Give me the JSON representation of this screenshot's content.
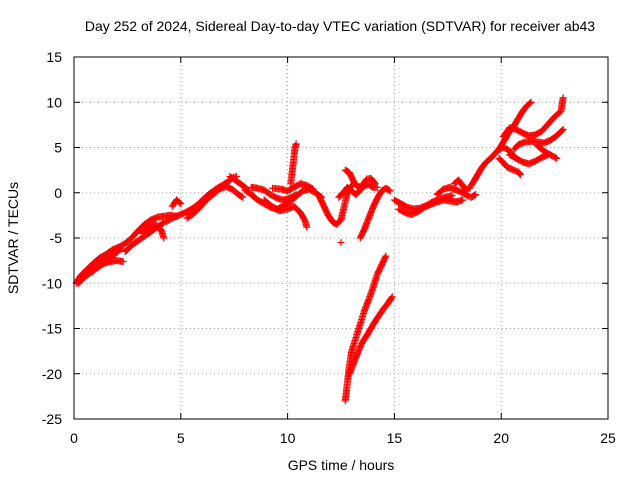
{
  "chart_data": {
    "type": "scatter",
    "title": "Day 252 of 2024, Sidereal Day-to-day VTEC variation (SDTVAR) for receiver ab43",
    "xlabel": "GPS time / hours",
    "ylabel": "SDTVAR / TECUs",
    "xlim": [
      0,
      25
    ],
    "ylim": [
      -25,
      15
    ],
    "xticks": [
      "0",
      "5",
      "10",
      "15",
      "20",
      "25"
    ],
    "yticks": [
      "-25",
      "-20",
      "-15",
      "-10",
      "-5",
      "0",
      "5",
      "10",
      "15"
    ],
    "grid": true,
    "marker": "plus",
    "color": "#ff0000",
    "segments": [
      [
        [
          0.1,
          -10
        ],
        [
          0.3,
          -9.2
        ],
        [
          0.6,
          -8.5
        ],
        [
          0.9,
          -7.8
        ],
        [
          1.2,
          -7.2
        ],
        [
          1.5,
          -6.8
        ],
        [
          1.8,
          -6.3
        ],
        [
          2.1,
          -6.0
        ],
        [
          2.4,
          -5.6
        ],
        [
          2.7,
          -5.0
        ],
        [
          3.0,
          -4.2
        ],
        [
          3.3,
          -3.5
        ],
        [
          3.6,
          -3.0
        ],
        [
          3.9,
          -2.7
        ],
        [
          4.2,
          -2.6
        ],
        [
          4.5,
          -2.5
        ],
        [
          4.8,
          -2.6
        ]
      ],
      [
        [
          0.2,
          -10
        ],
        [
          0.5,
          -9.3
        ],
        [
          0.8,
          -8.8
        ],
        [
          1.1,
          -8.3
        ],
        [
          1.4,
          -7.8
        ],
        [
          1.7,
          -7.6
        ],
        [
          2.0,
          -7.5
        ],
        [
          2.3,
          -7.6
        ]
      ],
      [
        [
          0.4,
          -9.5
        ],
        [
          0.7,
          -8.8
        ],
        [
          1.0,
          -7.8
        ],
        [
          1.3,
          -7.5
        ],
        [
          1.6,
          -7.2
        ],
        [
          1.9,
          -6.8
        ],
        [
          2.2,
          -6.2
        ]
      ],
      [
        [
          2.4,
          -6.5
        ],
        [
          2.7,
          -5.8
        ],
        [
          3.0,
          -5.3
        ],
        [
          3.3,
          -4.8
        ],
        [
          3.6,
          -4.3
        ],
        [
          3.9,
          -3.8
        ],
        [
          4.2,
          -3.3
        ]
      ],
      [
        [
          3.2,
          -4.5
        ],
        [
          3.5,
          -3.8
        ],
        [
          3.8,
          -3.5
        ],
        [
          4.1,
          -4.2
        ],
        [
          4.2,
          -5.0
        ]
      ],
      [
        [
          4.3,
          -3.2
        ],
        [
          4.6,
          -2.8
        ],
        [
          4.9,
          -2.5
        ],
        [
          5.2,
          -2.2
        ],
        [
          5.5,
          -1.8
        ],
        [
          5.8,
          -1.3
        ],
        [
          6.1,
          -0.6
        ],
        [
          6.4,
          0.0
        ],
        [
          6.7,
          0.5
        ],
        [
          7.0,
          0.9
        ],
        [
          7.2,
          1.2
        ],
        [
          7.4,
          1.6
        ],
        [
          7.6,
          1.8
        ]
      ],
      [
        [
          5.3,
          -2.8
        ],
        [
          5.6,
          -2.3
        ],
        [
          5.9,
          -1.6
        ],
        [
          6.2,
          -0.8
        ],
        [
          6.5,
          -0.2
        ],
        [
          6.8,
          0.4
        ],
        [
          7.1,
          0.7
        ],
        [
          7.4,
          0.4
        ],
        [
          7.7,
          -0.2
        ],
        [
          7.9,
          -0.5
        ]
      ],
      [
        [
          4.6,
          -1.5
        ],
        [
          4.8,
          -0.8
        ],
        [
          5.0,
          -1.2
        ]
      ],
      [
        [
          7.3,
          1.8
        ],
        [
          7.6,
          1.3
        ],
        [
          7.9,
          0.8
        ],
        [
          8.1,
          0.4
        ]
      ],
      [
        [
          8.0,
          0.3
        ],
        [
          8.3,
          -0.2
        ],
        [
          8.6,
          -0.8
        ],
        [
          8.9,
          -1.2
        ],
        [
          9.2,
          -1.6
        ],
        [
          9.5,
          -1.8
        ],
        [
          9.8,
          -1.5
        ],
        [
          10.1,
          -1.0
        ],
        [
          10.4,
          -0.4
        ],
        [
          10.7,
          0.2
        ],
        [
          11.0,
          0.4
        ],
        [
          11.3,
          0.0
        ],
        [
          11.6,
          -0.5
        ]
      ],
      [
        [
          8.3,
          0.6
        ],
        [
          8.6,
          0.5
        ],
        [
          8.9,
          0.3
        ],
        [
          9.2,
          -0.2
        ],
        [
          9.5,
          -0.6
        ],
        [
          9.8,
          -0.8
        ],
        [
          10.1,
          -0.6
        ],
        [
          10.4,
          -0.2
        ]
      ],
      [
        [
          8.9,
          -0.8
        ],
        [
          9.2,
          -1.4
        ],
        [
          9.6,
          -2.0
        ],
        [
          10.0,
          -1.8
        ],
        [
          10.3,
          -1.5
        ],
        [
          10.6,
          -2.2
        ],
        [
          10.8,
          -3.0
        ],
        [
          10.9,
          -3.8
        ]
      ],
      [
        [
          9.3,
          0.5
        ],
        [
          9.7,
          0.4
        ],
        [
          10.0,
          0.2
        ],
        [
          10.3,
          0.6
        ],
        [
          10.6,
          1.0
        ],
        [
          10.9,
          0.8
        ],
        [
          11.2,
          0.4
        ]
      ],
      [
        [
          10.15,
          1.0
        ],
        [
          10.2,
          2.0
        ],
        [
          10.25,
          3.0
        ],
        [
          10.3,
          4.0
        ],
        [
          10.35,
          5.0
        ],
        [
          10.4,
          5.4
        ]
      ],
      [
        [
          11.5,
          -0.5
        ],
        [
          11.7,
          -1.5
        ],
        [
          11.9,
          -2.5
        ],
        [
          12.1,
          -3.2
        ],
        [
          12.3,
          -3.5
        ],
        [
          12.5,
          -3.0
        ],
        [
          12.6,
          -2.0
        ],
        [
          12.7,
          -1.0
        ],
        [
          12.8,
          0.0
        ],
        [
          12.9,
          0.5
        ],
        [
          13.0,
          0.8
        ]
      ],
      [
        [
          12.4,
          -0.5
        ],
        [
          12.6,
          0.0
        ],
        [
          12.8,
          0.6
        ],
        [
          13.0,
          0.2
        ],
        [
          13.2,
          -0.2
        ],
        [
          13.4,
          0.3
        ],
        [
          13.6,
          0.8
        ],
        [
          13.8,
          0.9
        ],
        [
          14.0,
          0.6
        ],
        [
          14.2,
          0.6
        ]
      ],
      [
        [
          12.5,
          -5.5
        ]
      ],
      [
        [
          12.7,
          2.5
        ],
        [
          12.9,
          2.2
        ],
        [
          13.1,
          1.2
        ],
        [
          13.3,
          0.6
        ],
        [
          13.5,
          0.8
        ],
        [
          13.7,
          1.5
        ],
        [
          13.9,
          1.6
        ],
        [
          14.1,
          1.0
        ]
      ],
      [
        [
          13.4,
          -5.0
        ],
        [
          13.6,
          -4.0
        ],
        [
          13.8,
          -2.8
        ],
        [
          14.0,
          -1.6
        ],
        [
          14.2,
          -0.6
        ],
        [
          14.4,
          0.2
        ],
        [
          14.6,
          0.5
        ],
        [
          14.8,
          0.2
        ]
      ],
      [
        [
          12.7,
          -23.0
        ],
        [
          12.8,
          -21.0
        ],
        [
          12.9,
          -19.0
        ],
        [
          13.0,
          -17.5
        ],
        [
          13.2,
          -16.0
        ],
        [
          13.4,
          -14.5
        ],
        [
          13.6,
          -13.0
        ],
        [
          13.8,
          -11.8
        ],
        [
          14.0,
          -10.5
        ],
        [
          14.2,
          -9.0
        ],
        [
          14.4,
          -8.0
        ],
        [
          14.6,
          -7.0
        ]
      ],
      [
        [
          12.9,
          -20.0
        ],
        [
          13.1,
          -18.8
        ],
        [
          13.3,
          -17.6
        ],
        [
          13.5,
          -16.5
        ],
        [
          13.7,
          -15.8
        ],
        [
          13.9,
          -15.0
        ],
        [
          14.1,
          -14.2
        ],
        [
          14.3,
          -13.5
        ],
        [
          14.5,
          -12.8
        ],
        [
          14.7,
          -12.2
        ],
        [
          14.9,
          -11.5
        ]
      ],
      [
        [
          15.0,
          -0.8
        ],
        [
          15.3,
          -1.2
        ],
        [
          15.6,
          -1.6
        ],
        [
          15.9,
          -1.8
        ],
        [
          16.2,
          -1.7
        ],
        [
          16.5,
          -1.4
        ],
        [
          16.8,
          -1.0
        ],
        [
          17.1,
          -0.7
        ],
        [
          17.4,
          -0.5
        ],
        [
          17.7,
          -0.3
        ]
      ],
      [
        [
          15.2,
          -1.8
        ],
        [
          15.5,
          -2.2
        ],
        [
          15.8,
          -2.4
        ],
        [
          16.1,
          -2.1
        ],
        [
          16.4,
          -1.6
        ],
        [
          16.7,
          -1.3
        ],
        [
          17.0,
          -1.0
        ],
        [
          17.3,
          -0.8
        ],
        [
          17.6,
          -0.9
        ],
        [
          17.9,
          -1.0
        ],
        [
          18.2,
          -0.8
        ]
      ],
      [
        [
          17.0,
          -0.2
        ],
        [
          17.3,
          0.4
        ],
        [
          17.6,
          0.6
        ],
        [
          17.9,
          0.3
        ],
        [
          18.2,
          0.0
        ],
        [
          18.4,
          -0.3
        ],
        [
          18.6,
          -0.5
        ],
        [
          18.8,
          -0.2
        ]
      ],
      [
        [
          17.8,
          1.0
        ],
        [
          18.0,
          1.4
        ],
        [
          18.2,
          0.8
        ],
        [
          18.4,
          0.2
        ]
      ],
      [
        [
          18.5,
          0.5
        ],
        [
          18.7,
          1.2
        ],
        [
          18.9,
          2.0
        ],
        [
          19.1,
          2.8
        ],
        [
          19.3,
          3.4
        ],
        [
          19.5,
          3.8
        ],
        [
          19.7,
          4.3
        ],
        [
          19.9,
          4.8
        ],
        [
          20.1,
          5.0
        ],
        [
          20.3,
          4.8
        ],
        [
          20.5,
          4.3
        ],
        [
          20.7,
          3.8
        ]
      ],
      [
        [
          19.8,
          4.5
        ],
        [
          20.0,
          5.2
        ],
        [
          20.2,
          6.0
        ],
        [
          20.4,
          6.8
        ],
        [
          20.6,
          7.4
        ],
        [
          20.8,
          8.2
        ],
        [
          21.0,
          9.0
        ],
        [
          21.2,
          9.6
        ],
        [
          21.4,
          10.0
        ]
      ],
      [
        [
          20.1,
          6.2
        ],
        [
          20.4,
          7.2
        ],
        [
          20.7,
          7.0
        ],
        [
          21.0,
          6.6
        ],
        [
          21.3,
          6.3
        ],
        [
          21.6,
          6.4
        ],
        [
          21.9,
          6.8
        ],
        [
          22.2,
          7.6
        ],
        [
          22.5,
          8.4
        ],
        [
          22.8,
          9.0
        ],
        [
          22.9,
          10.5
        ]
      ],
      [
        [
          20.6,
          4.8
        ],
        [
          20.8,
          5.3
        ],
        [
          21.1,
          5.6
        ],
        [
          21.4,
          5.7
        ],
        [
          21.7,
          5.6
        ],
        [
          22.0,
          5.5
        ],
        [
          22.3,
          5.8
        ],
        [
          22.6,
          6.3
        ],
        [
          22.9,
          7.0
        ]
      ],
      [
        [
          20.4,
          4.2
        ],
        [
          20.7,
          3.8
        ],
        [
          21.0,
          3.4
        ],
        [
          21.3,
          3.2
        ],
        [
          21.6,
          3.5
        ],
        [
          21.9,
          3.9
        ],
        [
          22.2,
          4.2
        ]
      ],
      [
        [
          19.9,
          3.8
        ],
        [
          20.1,
          3.3
        ],
        [
          20.3,
          2.8
        ],
        [
          20.6,
          2.5
        ],
        [
          20.8,
          2.3
        ],
        [
          20.9,
          2.0
        ]
      ],
      [
        [
          21.7,
          5.2
        ],
        [
          22.0,
          4.6
        ],
        [
          22.3,
          4.2
        ],
        [
          22.6,
          3.8
        ]
      ]
    ]
  }
}
